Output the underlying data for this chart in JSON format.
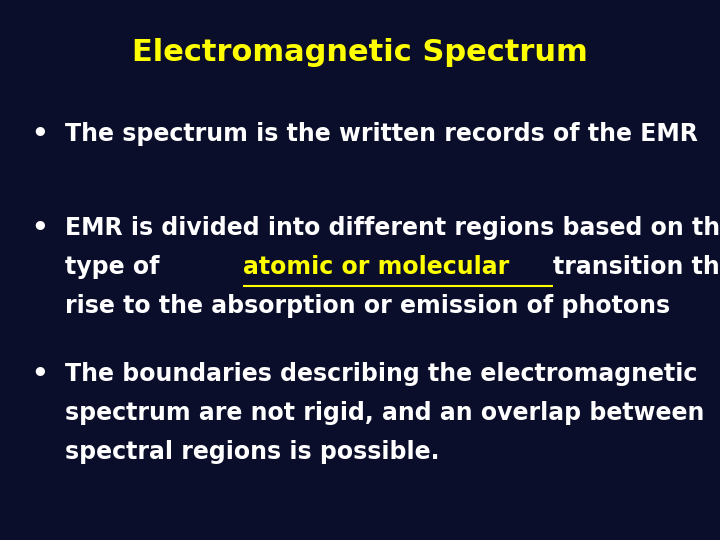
{
  "title": "Electromagnetic Spectrum",
  "title_color": "#FFFF00",
  "title_fontsize": 22,
  "background_color": "#0A0E2A",
  "bullet_color": "#FFFFFF",
  "bullet_fontsize": 17,
  "link_color": "#FFFF00",
  "bullet1": "The spectrum is the written records of the EMR",
  "bullet2_line1": "EMR is divided into different regions based on the",
  "bullet2_line2_pre": "type of ",
  "bullet2_line2_link": "atomic or molecular ",
  "bullet2_line2_post": "transition that gives",
  "bullet2_line3": "rise to the absorption or emission of photons",
  "bullet3_line1": "The boundaries describing the electromagnetic",
  "bullet3_line2": "spectrum are not rigid, and an overlap between",
  "bullet3_line3": "spectral regions is possible."
}
